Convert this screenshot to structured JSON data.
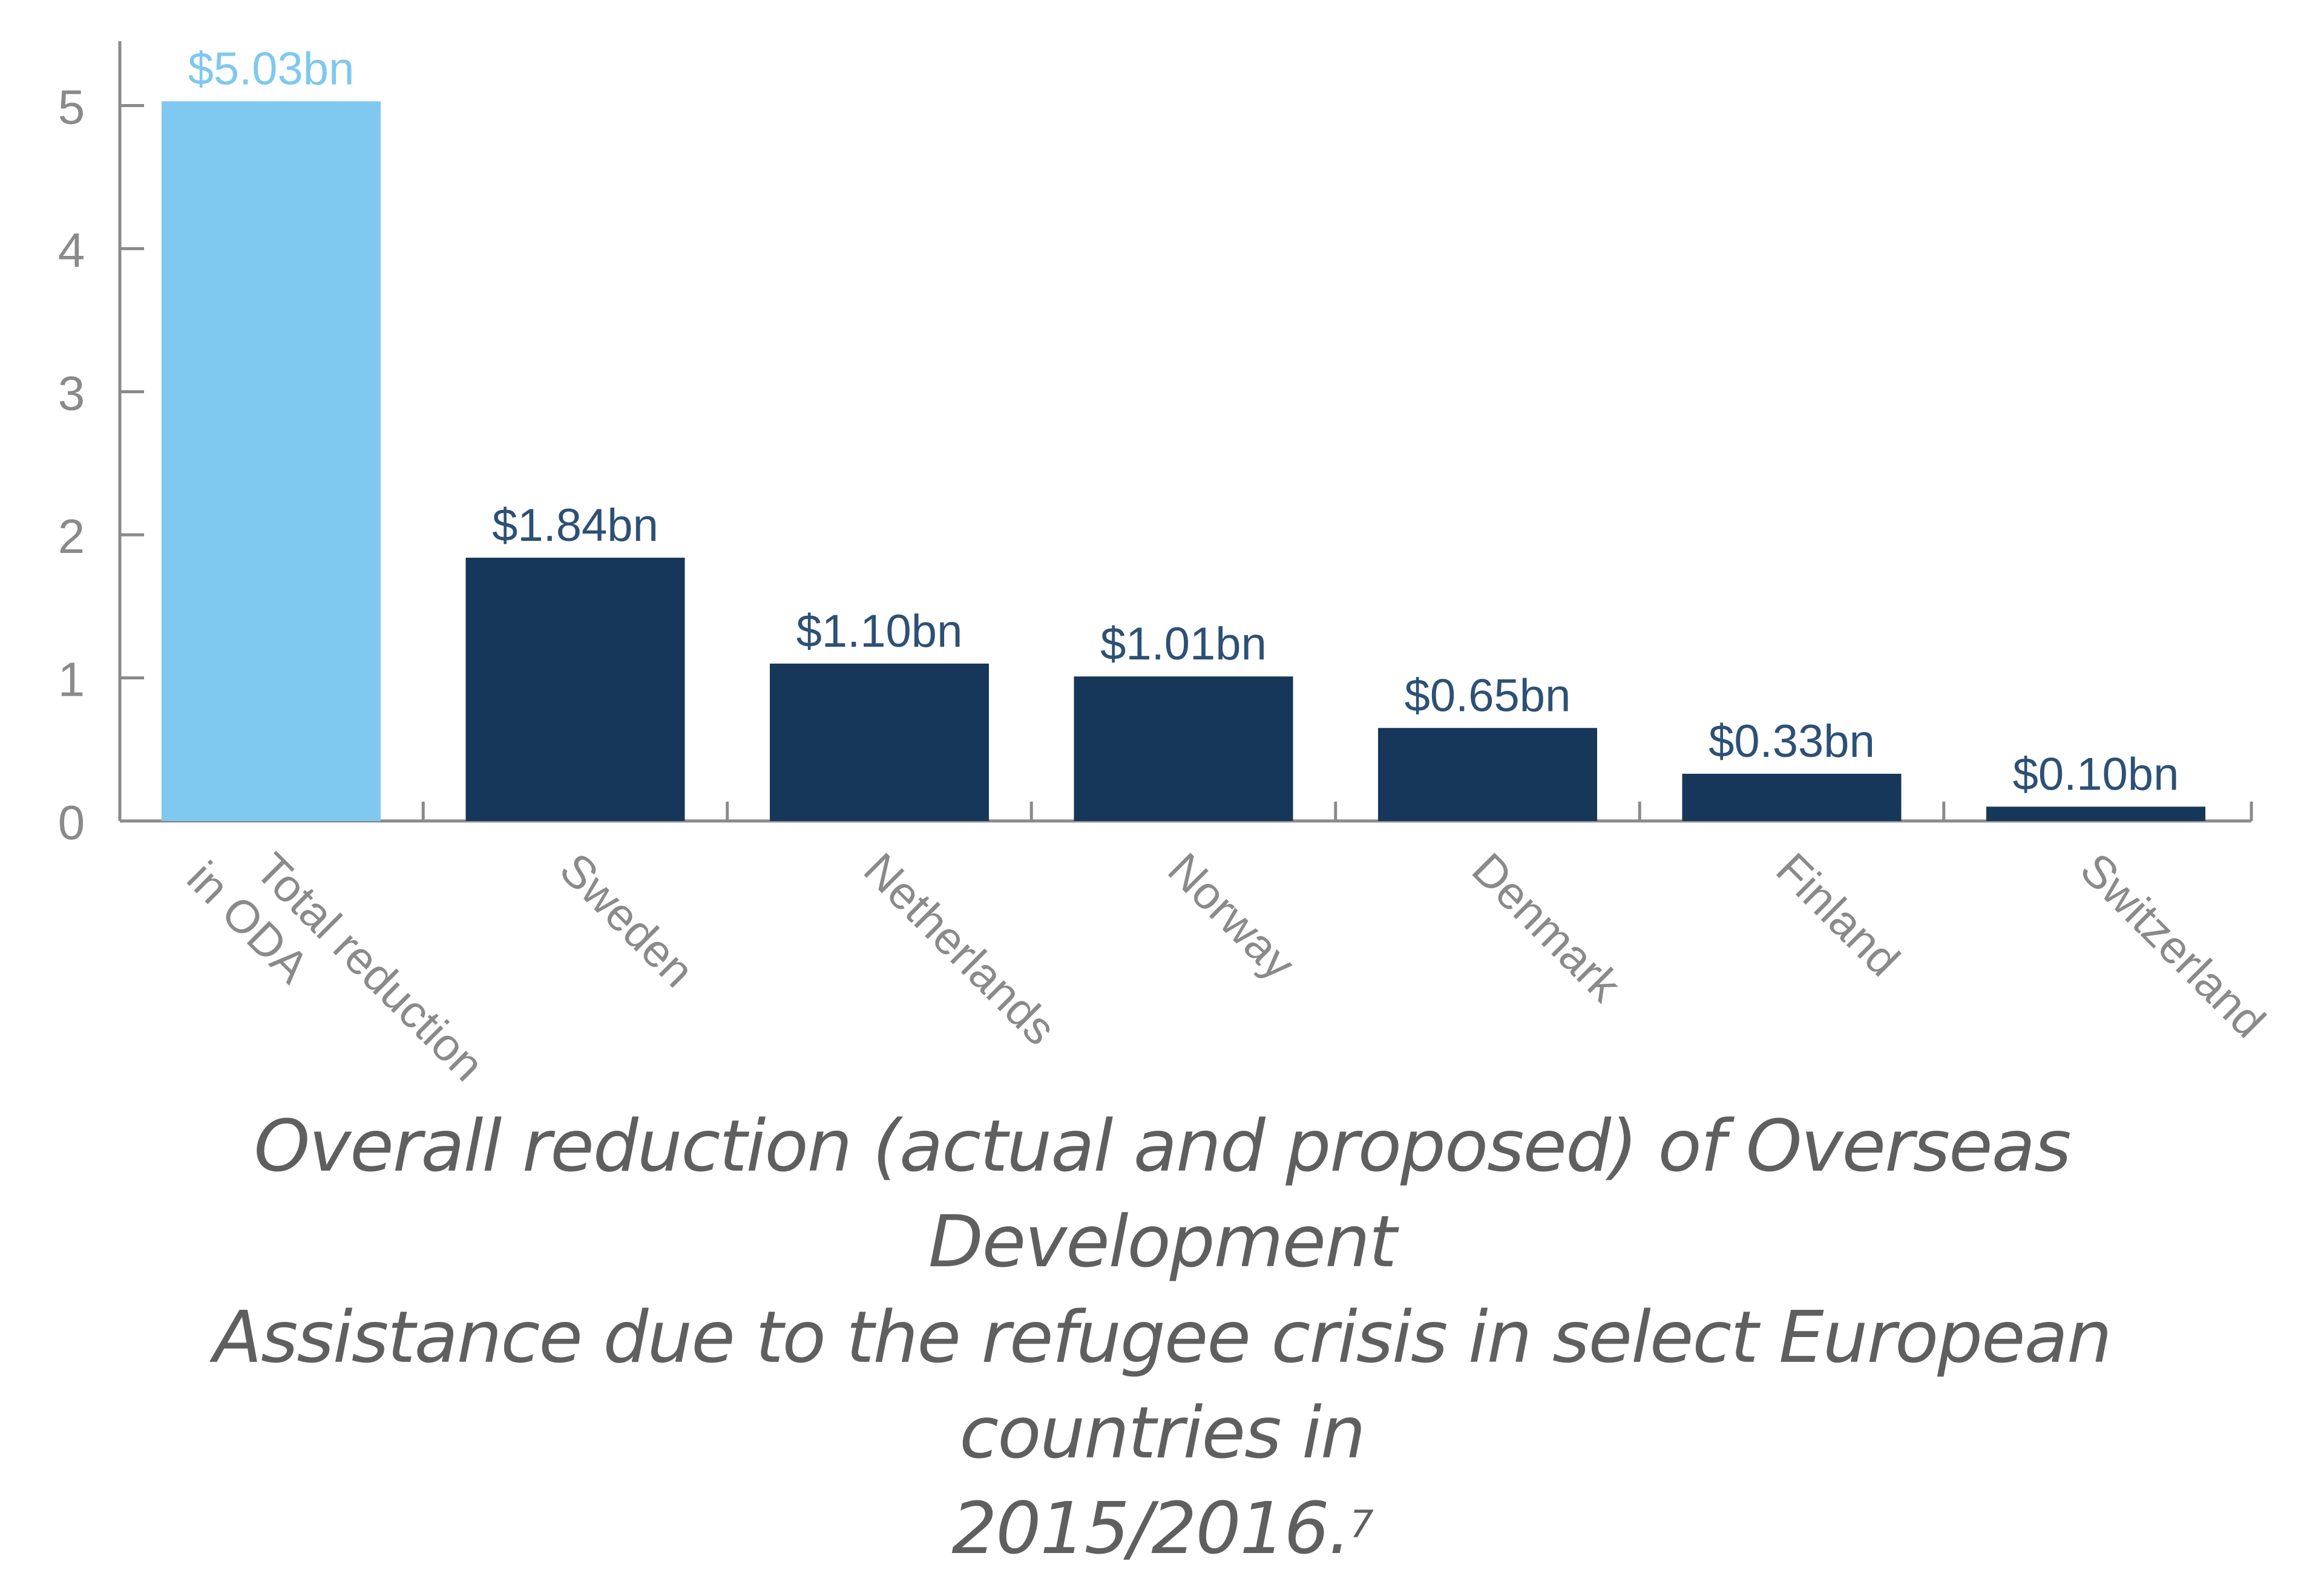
{
  "chart_data": {
    "type": "bar",
    "categories": [
      "Total reduction\nin ODA",
      "Sweden",
      "Netherlands",
      "Norway",
      "Denmark",
      "Finland",
      "Switzerland"
    ],
    "values": [
      5.03,
      1.84,
      1.1,
      1.01,
      0.65,
      0.33,
      0.1
    ],
    "data_labels": [
      "$5.03bn",
      "$1.84bn",
      "$1.10bn",
      "$1.01bn",
      "$0.65bn",
      "$0.33bn",
      "$0.10bn"
    ],
    "bar_colors": [
      "#7fc8ef",
      "#16365a",
      "#16365a",
      "#16365a",
      "#16365a",
      "#16365a",
      "#16365a"
    ],
    "label_colors": [
      "#7fc8ef",
      "#2d5075",
      "#2d5075",
      "#2d5075",
      "#2d5075",
      "#2d5075",
      "#2d5075"
    ],
    "yticks": [
      0,
      1,
      2,
      3,
      4,
      5
    ],
    "ylim": [
      0,
      5.45
    ],
    "xlabel": "",
    "ylabel": "",
    "grid": false,
    "title": ""
  },
  "caption": {
    "line1": "Overall reduction (actual and proposed) of Overseas Development",
    "line2": "Assistance due to the refugee crisis in select European countries in",
    "line3": "2015/2016.",
    "footnote": "7"
  },
  "colors": {
    "axis": "#8a8a8a",
    "tick_label": "#8a8a8a",
    "caption": "#5f5f5f"
  }
}
